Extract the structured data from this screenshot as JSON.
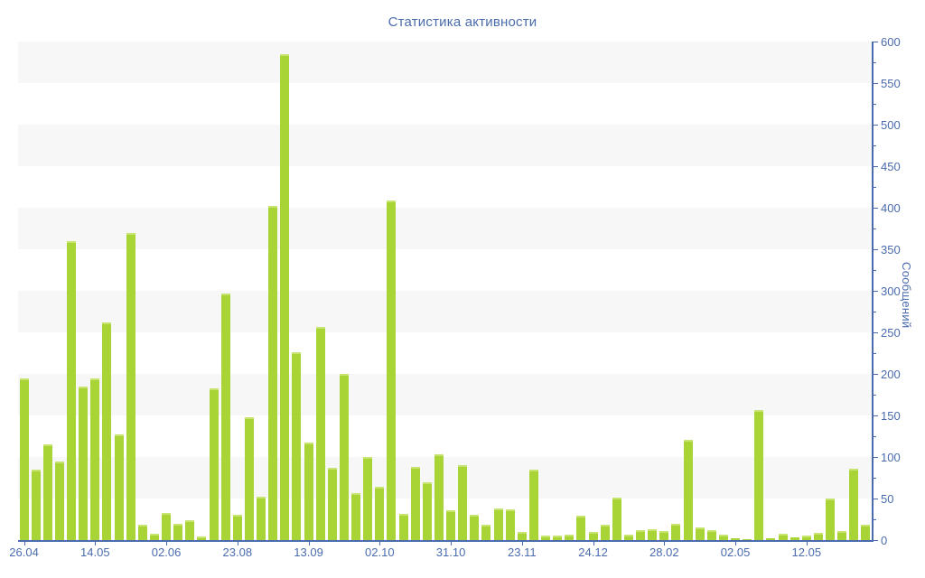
{
  "chart_data": {
    "type": "bar",
    "title": "Статистика активности",
    "xlabel": "",
    "ylabel": "Сообщений",
    "ylim": [
      0,
      600
    ],
    "y_major_step": 50,
    "y_minor_step": 25,
    "y_axis_side": "right",
    "legend": "none",
    "grid": "alternating horizontal bands",
    "colors": {
      "bar": "#a9d435",
      "bar_cap": "#c7e471",
      "stripe": "#f7f7f8",
      "axis": "#4a6bae",
      "tick_label": "#4a6bae",
      "title": "#4a6cab",
      "background": "#ffffff"
    },
    "values": [
      195,
      85,
      115,
      95,
      360,
      185,
      195,
      262,
      127,
      370,
      18,
      8,
      33,
      20,
      24,
      4,
      183,
      297,
      30,
      148,
      52,
      402,
      585,
      226,
      117,
      256,
      87,
      200,
      56,
      100,
      64,
      409,
      31,
      88,
      70,
      103,
      36,
      90,
      30,
      19,
      38,
      37,
      10,
      85,
      5,
      5,
      6,
      29,
      10,
      18,
      51,
      7,
      12,
      13,
      11,
      20,
      121,
      15,
      12,
      6,
      2,
      1,
      156,
      2,
      8,
      3,
      5,
      9,
      50,
      11,
      86,
      18
    ],
    "x_tick_labels": [
      {
        "label": "26.04",
        "bar_index": 0
      },
      {
        "label": "14.05",
        "bar_index": 6
      },
      {
        "label": "02.06",
        "bar_index": 12
      },
      {
        "label": "23.08",
        "bar_index": 18
      },
      {
        "label": "13.09",
        "bar_index": 24
      },
      {
        "label": "02.10",
        "bar_index": 30
      },
      {
        "label": "31.10",
        "bar_index": 36
      },
      {
        "label": "23.11",
        "bar_index": 42
      },
      {
        "label": "24.12",
        "bar_index": 48
      },
      {
        "label": "28.02",
        "bar_index": 54
      },
      {
        "label": "02.05",
        "bar_index": 60
      },
      {
        "label": "12.05",
        "bar_index": 66
      }
    ]
  }
}
